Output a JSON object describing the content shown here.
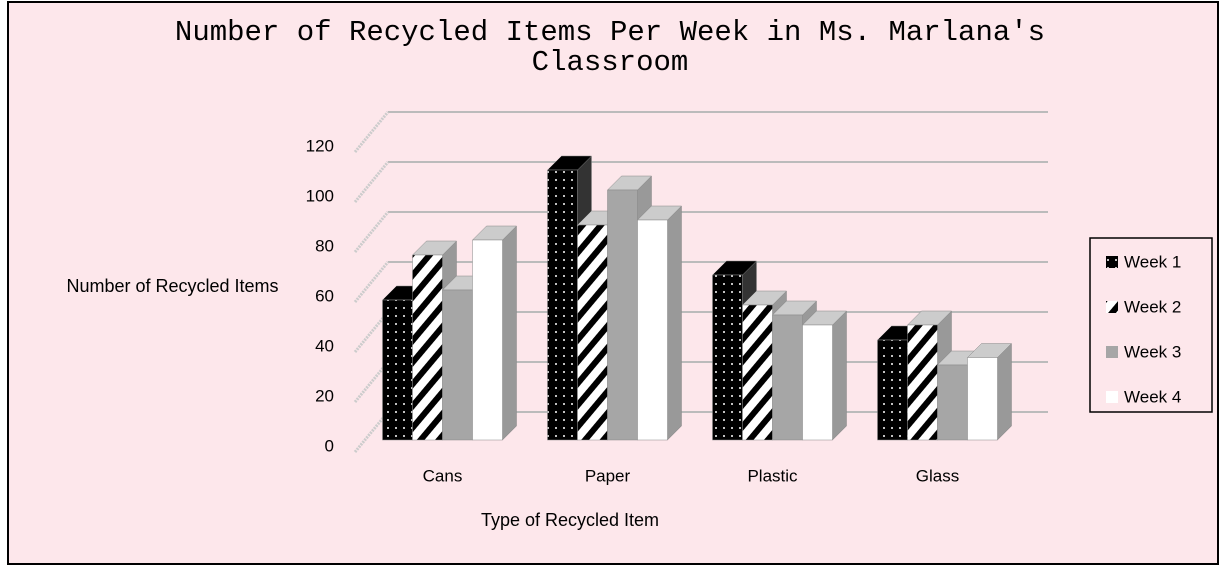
{
  "chart_data": {
    "type": "bar3d",
    "title": "Number of Recycled Items Per Week in Ms. Marlana's Classroom",
    "x_label": "Type of Recycled Item",
    "y_label": "Number of Recycled Items",
    "categories": [
      "Cans",
      "Paper",
      "Plastic",
      "Glass"
    ],
    "series": [
      {
        "name": "Week 1",
        "color": "#000000",
        "pattern": "dots",
        "values": [
          56,
          108,
          66,
          40
        ]
      },
      {
        "name": "Week 2",
        "color": "#ffffff",
        "pattern": "stripes",
        "values": [
          74,
          86,
          54,
          46
        ]
      },
      {
        "name": "Week 3",
        "color": "#a6a6a6",
        "pattern": "solid",
        "values": [
          60,
          100,
          50,
          30
        ]
      },
      {
        "name": "Week 4",
        "color": "#ffffff",
        "pattern": "solid",
        "values": [
          80,
          88,
          46,
          33
        ]
      }
    ],
    "ylim": [
      0,
      120
    ],
    "yticks": [
      0,
      20,
      40,
      60,
      80,
      100,
      120
    ],
    "grid": true,
    "legend": "right"
  }
}
